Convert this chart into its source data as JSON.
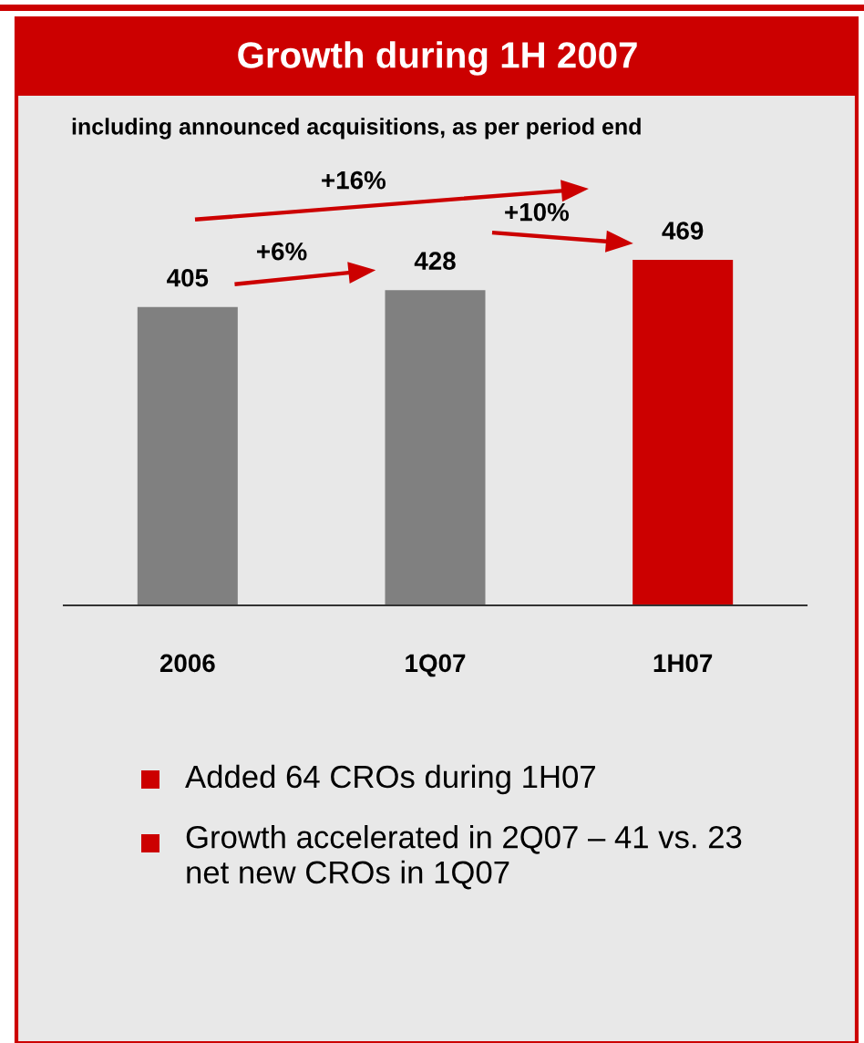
{
  "chart_data": {
    "type": "bar",
    "title": "Growth during 1H 2007",
    "subtitle": "including announced acquisitions, as per period end",
    "categories": [
      "2006",
      "1Q07",
      "1H07"
    ],
    "values": [
      405,
      428,
      469
    ],
    "colors": [
      "#808080",
      "#808080",
      "#cc0000"
    ],
    "data_labels": true,
    "tick_labels": "x",
    "grid": false,
    "legend": false,
    "annotations": [
      "+6%",
      "+10%",
      "+16%",
      "Added 64 CROs during 1H07",
      "Growth accelerated in 2Q07 – 41 vs. 23 net new CROs in 1Q07"
    ]
  }
}
